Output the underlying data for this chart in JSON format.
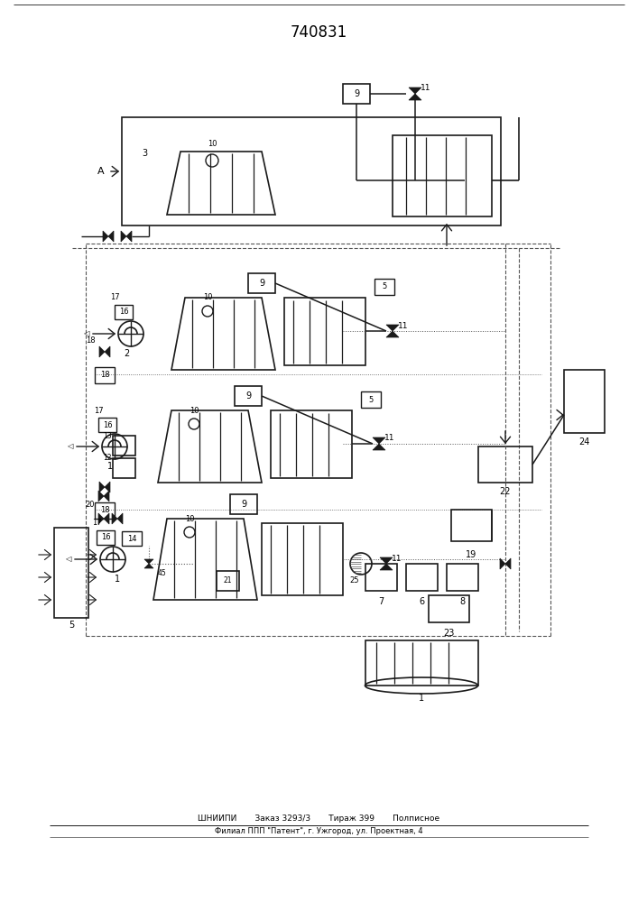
{
  "title": "740831",
  "footer_line1": "ШНИИПИ       Заказ 3293/3       Тираж 399       Полписное",
  "footer_line2": "Филиал ППП \"Патент\", г. Ужгород, ул. Проектная, 4",
  "bg_color": "#ffffff",
  "lc": "#1a1a1a",
  "dc": "#555555"
}
